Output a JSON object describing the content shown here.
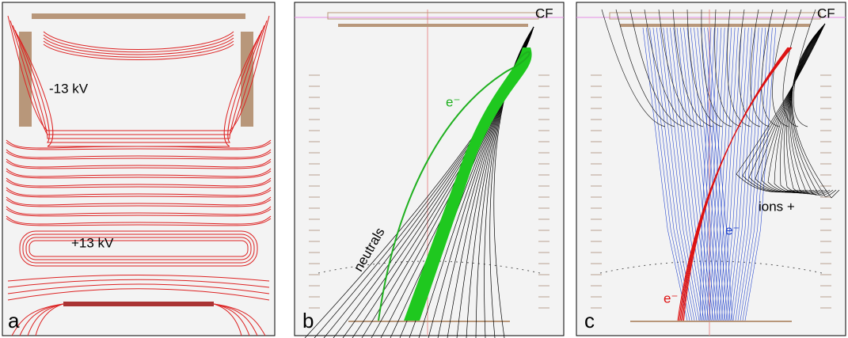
{
  "panels": [
    {
      "label": "a",
      "annotations": [
        "-13 kV",
        "+13 kV"
      ]
    },
    {
      "label": "b",
      "annotations": [
        "CF",
        "e⁻",
        "neutrals"
      ]
    },
    {
      "label": "c",
      "annotations": [
        "CF",
        "ions +",
        "e⁻",
        "e⁻"
      ]
    }
  ]
}
